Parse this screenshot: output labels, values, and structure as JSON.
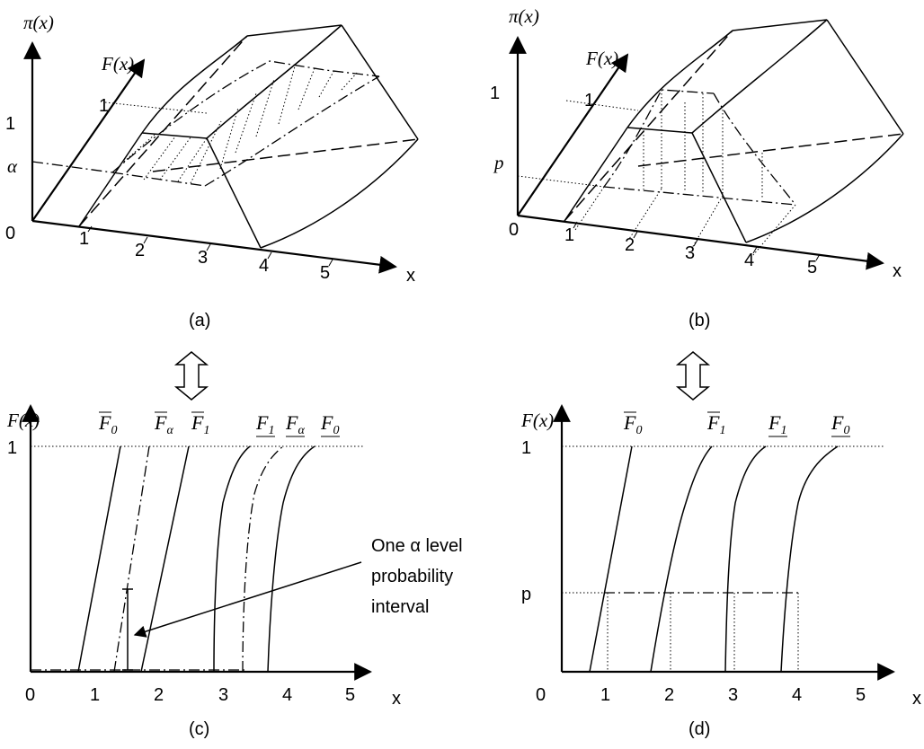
{
  "panel_a": {
    "caption": "(a)",
    "y_label": "π(x)",
    "depth_label": "F(x)",
    "x_label": "x",
    "origin": "0",
    "y_tick_1": "1",
    "y_tick_alpha": "α",
    "depth_tick": "1",
    "x_ticks": [
      "1",
      "2",
      "3",
      "4",
      "5"
    ]
  },
  "panel_b": {
    "caption": "(b)",
    "y_label": "π(x)",
    "depth_label": "F(x)",
    "x_label": "x",
    "origin": "0",
    "y_tick_1": "1",
    "y_tick_p": "p",
    "depth_tick": "1",
    "x_ticks": [
      "1",
      "2",
      "3",
      "4",
      "5"
    ]
  },
  "panel_c": {
    "caption": "(c)",
    "y_label": "F(x)",
    "x_label": "x",
    "y_tick_1": "1",
    "x_ticks": [
      "0",
      "1",
      "2",
      "3",
      "4",
      "5"
    ],
    "curve_labels": [
      {
        "base": "F",
        "sub": "0",
        "bar": "over"
      },
      {
        "base": "F",
        "sub": "α",
        "bar": "over"
      },
      {
        "base": "F",
        "sub": "1",
        "bar": "over"
      },
      {
        "base": "F",
        "sub": "1",
        "bar": "under"
      },
      {
        "base": "F",
        "sub": "α",
        "bar": "under"
      },
      {
        "base": "F",
        "sub": "0",
        "bar": "under"
      }
    ],
    "annotation": [
      "One α level",
      "probability",
      "interval"
    ]
  },
  "panel_d": {
    "caption": "(d)",
    "y_label": "F(x)",
    "x_label": "x",
    "y_tick_1": "1",
    "y_tick_p": "p",
    "x_ticks": [
      "0",
      "1",
      "2",
      "3",
      "4",
      "5"
    ],
    "curve_labels": [
      {
        "base": "F",
        "sub": "0",
        "bar": "over"
      },
      {
        "base": "F",
        "sub": "1",
        "bar": "over"
      },
      {
        "base": "F",
        "sub": "1",
        "bar": "under"
      },
      {
        "base": "F",
        "sub": "0",
        "bar": "under"
      }
    ]
  }
}
